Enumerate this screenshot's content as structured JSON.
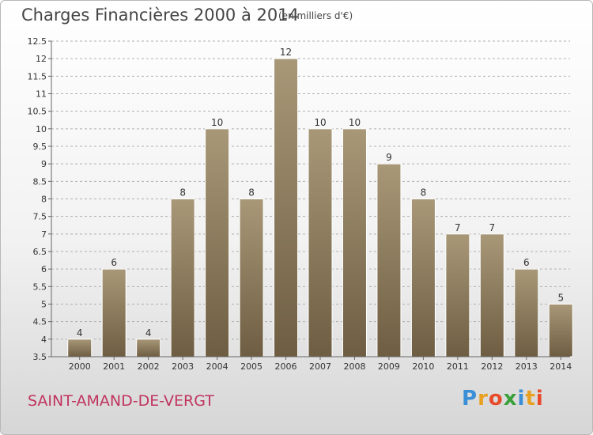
{
  "header": {
    "title": "Charges Financières 2000 à 2014",
    "unit": "(en milliers d'€)"
  },
  "footer": {
    "commune": "SAINT-AMAND-DE-VERGT",
    "logo": [
      "P",
      "r",
      "o",
      "x",
      "i",
      "t",
      "i"
    ]
  },
  "colors": {
    "bar_top": "#a89878",
    "bar_bottom": "#6e5d42",
    "grid": "#b0b0b0",
    "commune": "#c0345f"
  },
  "chart_data": {
    "type": "bar",
    "title": "Charges Financières 2000 à 2014",
    "xlabel": "",
    "ylabel": "",
    "categories": [
      "2000",
      "2001",
      "2002",
      "2003",
      "2004",
      "2005",
      "2006",
      "2007",
      "2008",
      "2009",
      "2010",
      "2011",
      "2012",
      "2013",
      "2014"
    ],
    "values": [
      4,
      6,
      4,
      8,
      10,
      8,
      12,
      10,
      10,
      9,
      8,
      7,
      7,
      6,
      5
    ],
    "value_labels": [
      "4",
      "6",
      "4",
      "8",
      "10",
      "8",
      "12",
      "10",
      "10",
      "9",
      "8",
      "7",
      "7",
      "6",
      "5"
    ],
    "ylim": [
      3.5,
      12.5
    ],
    "yticks": [
      3.5,
      4,
      4.5,
      5,
      5.5,
      6,
      6.5,
      7,
      7.5,
      8,
      8.5,
      9,
      9.5,
      10,
      10.5,
      11,
      11.5,
      12,
      12.5
    ],
    "ytick_labels": [
      "3.5",
      "4",
      "4.5",
      "5",
      "5.5",
      "6",
      "6.5",
      "7",
      "7.5",
      "8",
      "8.5",
      "9",
      "9.5",
      "10",
      "10.5",
      "11",
      "11.5",
      "12",
      "12.5"
    ],
    "grid": true,
    "legend": "none"
  }
}
